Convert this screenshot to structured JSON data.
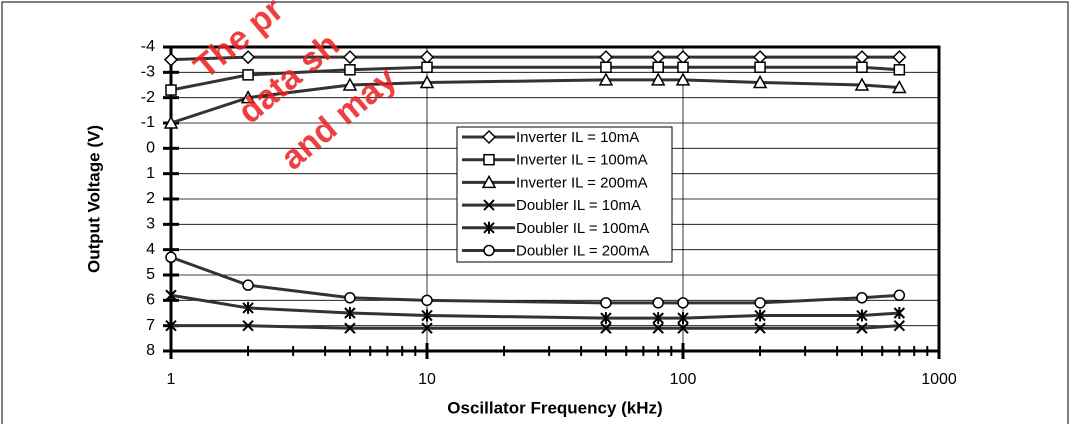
{
  "chart_data": {
    "type": "line",
    "xlabel": "Oscillator Frequency (kHz)",
    "ylabel": "Output Voltage (V)",
    "watermark": [
      "The pr",
      "data sh",
      "and may"
    ],
    "x": [
      1,
      2,
      5,
      10,
      50,
      80,
      100,
      200,
      500,
      700
    ],
    "xlim": [
      1,
      1000
    ],
    "xticks": [
      1,
      10,
      100,
      1000
    ],
    "xscale": "log",
    "ylim": [
      -4,
      8
    ],
    "y_inverted": true,
    "yticks": [
      -4,
      -3,
      -2,
      -1,
      0,
      1,
      2,
      3,
      4,
      5,
      6,
      7,
      8
    ],
    "grid": true,
    "legend": "center",
    "series": [
      {
        "name": "Inverter IL = 10mA",
        "color": "#333333",
        "marker": "diamond",
        "values": [
          -3.5,
          -3.6,
          -3.6,
          -3.6,
          -3.6,
          -3.6,
          -3.6,
          -3.6,
          -3.6,
          -3.6
        ]
      },
      {
        "name": "Inverter IL = 100mA",
        "color": "#333333",
        "marker": "square",
        "values": [
          -2.3,
          -2.9,
          -3.1,
          -3.2,
          -3.2,
          -3.2,
          -3.2,
          -3.2,
          -3.2,
          -3.1
        ]
      },
      {
        "name": "Inverter IL = 200mA",
        "color": "#333333",
        "marker": "triangle",
        "values": [
          -1.0,
          -2.0,
          -2.5,
          -2.6,
          -2.7,
          -2.7,
          -2.7,
          -2.6,
          -2.5,
          -2.4
        ]
      },
      {
        "name": "Doubler IL = 10mA",
        "color": "#333333",
        "marker": "x",
        "values": [
          7.0,
          7.0,
          7.1,
          7.1,
          7.1,
          7.1,
          7.1,
          7.1,
          7.1,
          7.0
        ]
      },
      {
        "name": "Doubler IL = 100mA",
        "color": "#333333",
        "marker": "star",
        "values": [
          5.8,
          6.3,
          6.5,
          6.6,
          6.7,
          6.7,
          6.7,
          6.6,
          6.6,
          6.5
        ]
      },
      {
        "name": "Doubler IL = 200mA",
        "color": "#333333",
        "marker": "circle",
        "values": [
          4.3,
          5.4,
          5.9,
          6.0,
          6.1,
          6.1,
          6.1,
          6.1,
          5.9,
          5.8
        ]
      }
    ]
  }
}
